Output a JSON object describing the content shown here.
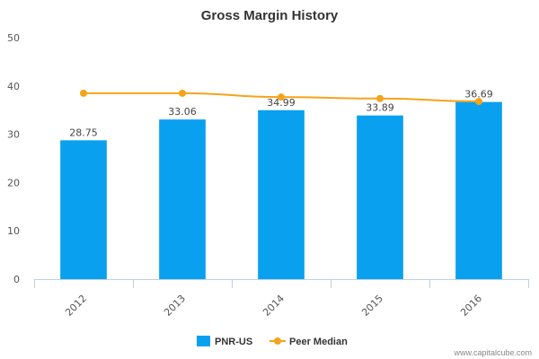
{
  "colors": {
    "bar": "#0aa0f0",
    "line": "#f6a31a",
    "axis": "#c0d0e0",
    "text": "#333333"
  },
  "credit": "www.capitalcube.com",
  "chart_data": {
    "type": "bar",
    "title": "Gross Margin History",
    "xlabel": "",
    "ylabel": "",
    "categories": [
      "2012",
      "2013",
      "2014",
      "2015",
      "2016"
    ],
    "ylim": [
      0,
      50
    ],
    "yticks": [
      0,
      10,
      20,
      30,
      40,
      50
    ],
    "grid": false,
    "legend_position": "bottom",
    "series": [
      {
        "name": "PNR-US",
        "type": "bar",
        "values": [
          28.75,
          33.06,
          34.99,
          33.89,
          36.69
        ],
        "labels": [
          "28.75",
          "33.06",
          "34.99",
          "33.89",
          "36.69"
        ]
      },
      {
        "name": "Peer Median",
        "type": "line",
        "values": [
          38.5,
          38.5,
          37.7,
          37.4,
          36.8
        ]
      }
    ]
  }
}
